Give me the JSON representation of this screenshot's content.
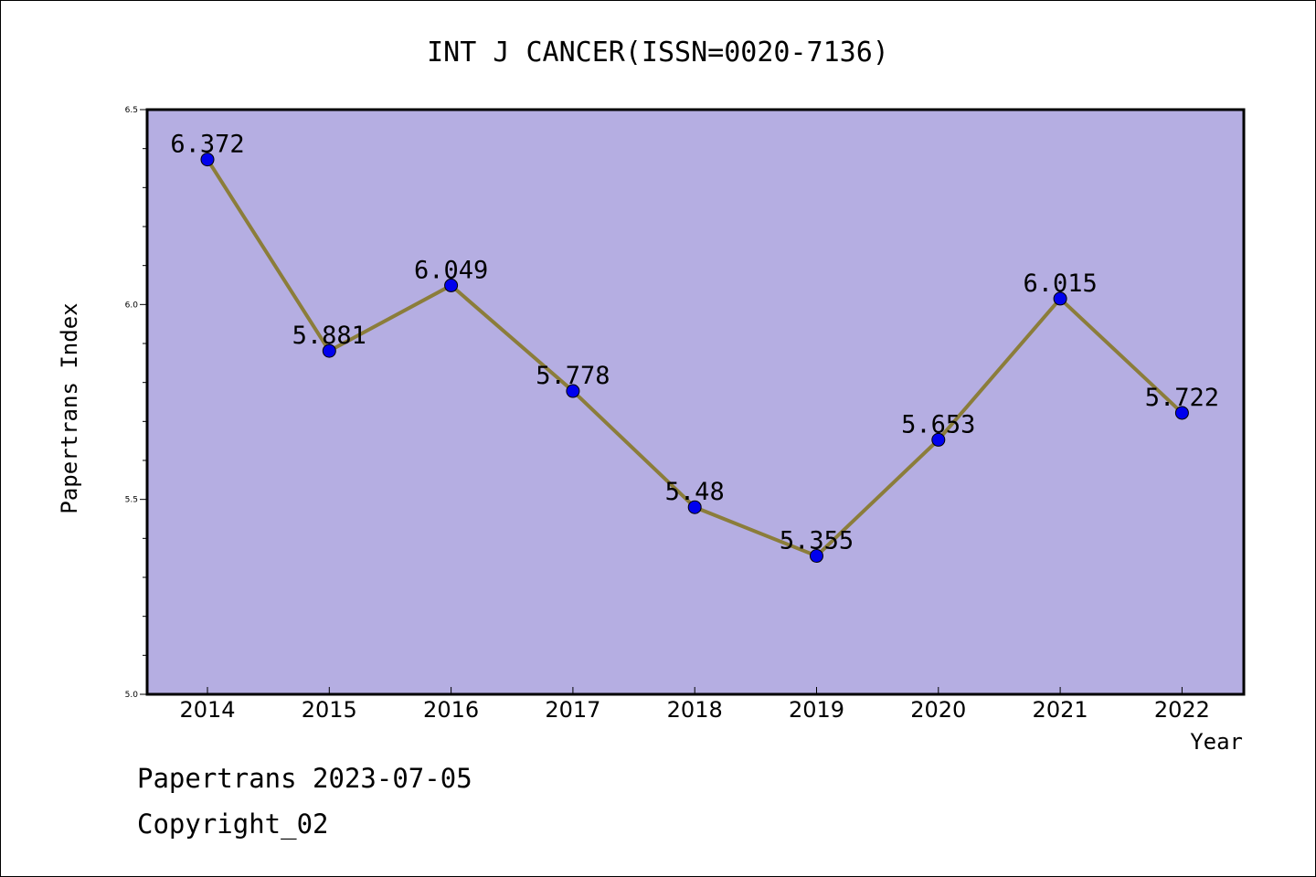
{
  "chart_data": {
    "type": "line",
    "title": "INT J CANCER(ISSN=0020-7136)",
    "xlabel": "Year",
    "ylabel": "Papertrans Index",
    "categories": [
      "2014",
      "2015",
      "2016",
      "2017",
      "2018",
      "2019",
      "2020",
      "2021",
      "2022"
    ],
    "series": [
      {
        "values": [
          6.372,
          5.881,
          6.049,
          5.778,
          5.48,
          5.355,
          5.653,
          6.015,
          5.722
        ],
        "labels": [
          "6.372",
          "5.881",
          "6.049",
          "5.778",
          "5.48",
          "5.355",
          "5.653",
          "6.015",
          "5.722"
        ]
      }
    ],
    "ylim": [
      5.0,
      6.5
    ],
    "yticks": [
      "5.0",
      "5.5",
      "6.0",
      "6.5"
    ],
    "grid": false,
    "colors": {
      "plot_background": "#b5aee2",
      "line": "#8b7d3a",
      "marker": "#0000ee"
    }
  },
  "footer": {
    "line1": "Papertrans 2023-07-05",
    "line2": "Copyright_02"
  }
}
